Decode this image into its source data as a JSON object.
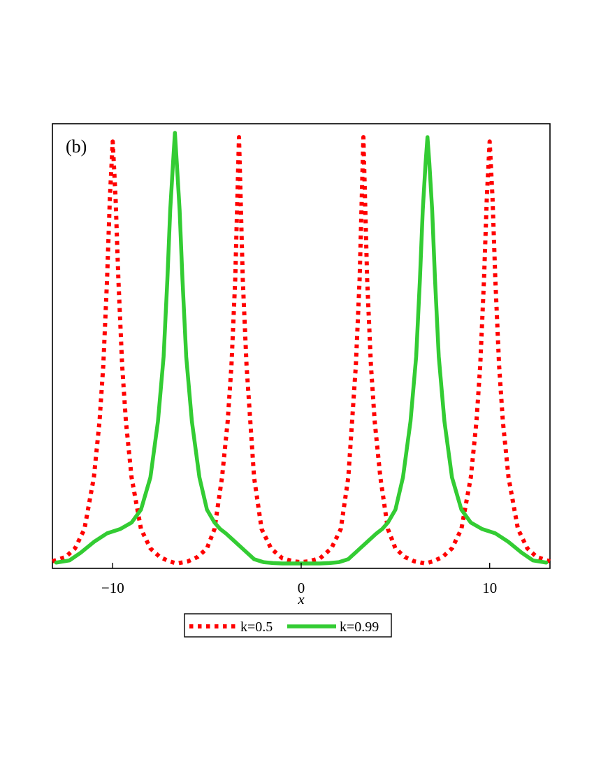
{
  "chart_data": {
    "type": "line",
    "panel_label": "(b)",
    "title": "",
    "xlabel": "x",
    "ylabel": "",
    "xlim": [
      -13.2,
      13.2
    ],
    "ylim": [
      0,
      1
    ],
    "x_ticks": [
      -10,
      0,
      10
    ],
    "x_tick_labels": [
      "−10",
      "0",
      "10"
    ],
    "y_ticks_shown": false,
    "grid": false,
    "legend_position": "bottom-center",
    "series": [
      {
        "name": "k=0.5",
        "style": "dotted",
        "color": "#ff0000",
        "peaks_x": [
          -10,
          -3.3,
          3.3,
          10
        ],
        "x": [
          -13.2,
          -12.5,
          -12,
          -11.5,
          -11,
          -10.7,
          -10.5,
          -10.3,
          -10.15,
          -10,
          -9.85,
          -9.7,
          -9.5,
          -9.3,
          -9,
          -8.5,
          -8,
          -7.5,
          -7,
          -6.6,
          -6,
          -5.5,
          -5,
          -4.6,
          -4.2,
          -3.9,
          -3.7,
          -3.5,
          -3.3,
          -3.1,
          -2.9,
          -2.7,
          -2.5,
          -2.1,
          -1.6,
          -1,
          -0.4,
          0,
          0.4,
          1,
          1.6,
          2.1,
          2.5,
          2.7,
          2.9,
          3.1,
          3.3,
          3.5,
          3.7,
          3.9,
          4.2,
          4.6,
          5,
          5.5,
          6,
          6.6,
          7,
          7.5,
          8,
          8.5,
          9,
          9.3,
          9.5,
          9.7,
          9.85,
          10,
          10.15,
          10.3,
          10.5,
          10.7,
          11,
          11.5,
          12,
          12.5,
          13.2
        ],
        "y": [
          0.005,
          0.015,
          0.035,
          0.08,
          0.2,
          0.33,
          0.46,
          0.66,
          0.85,
          0.98,
          0.85,
          0.66,
          0.46,
          0.33,
          0.2,
          0.08,
          0.035,
          0.015,
          0.005,
          0.0,
          0.005,
          0.015,
          0.035,
          0.08,
          0.2,
          0.33,
          0.46,
          0.66,
          0.99,
          0.66,
          0.46,
          0.33,
          0.2,
          0.08,
          0.035,
          0.012,
          0.005,
          0.003,
          0.005,
          0.012,
          0.035,
          0.08,
          0.2,
          0.33,
          0.46,
          0.66,
          0.99,
          0.66,
          0.46,
          0.33,
          0.2,
          0.08,
          0.035,
          0.015,
          0.005,
          0.0,
          0.005,
          0.015,
          0.035,
          0.08,
          0.2,
          0.33,
          0.46,
          0.66,
          0.85,
          0.98,
          0.85,
          0.66,
          0.46,
          0.33,
          0.2,
          0.08,
          0.035,
          0.015,
          0.005
        ]
      },
      {
        "name": "k=0.99",
        "style": "solid",
        "color": "#33cc33",
        "peaks_x": [
          -6.7,
          6.7
        ],
        "x": [
          -13,
          -12.3,
          -11.7,
          -11,
          -10.3,
          -9.6,
          -9,
          -8.5,
          -8,
          -7.6,
          -7.3,
          -7.1,
          -6.95,
          -6.8,
          -6.7,
          -6.6,
          -6.45,
          -6.3,
          -6.1,
          -5.8,
          -5.4,
          -5,
          -4.6,
          -4.3,
          -4,
          -3.5,
          -3,
          -2.5,
          -2,
          -1.5,
          -1,
          0,
          1,
          1.5,
          2,
          2.5,
          3,
          3.5,
          4,
          4.3,
          4.6,
          5,
          5.4,
          5.8,
          6.1,
          6.3,
          6.45,
          6.6,
          6.7,
          6.8,
          6.95,
          7.1,
          7.3,
          7.6,
          8,
          8.5,
          9,
          9.6,
          10.3,
          11,
          11.7,
          12.3,
          13
        ],
        "y": [
          0.002,
          0.007,
          0.025,
          0.05,
          0.07,
          0.08,
          0.095,
          0.125,
          0.2,
          0.33,
          0.48,
          0.66,
          0.82,
          0.93,
          1.0,
          0.93,
          0.82,
          0.66,
          0.48,
          0.33,
          0.2,
          0.125,
          0.095,
          0.08,
          0.07,
          0.05,
          0.03,
          0.01,
          0.003,
          0.001,
          0.0,
          0.0,
          0.0,
          0.001,
          0.003,
          0.01,
          0.03,
          0.05,
          0.07,
          0.08,
          0.095,
          0.125,
          0.2,
          0.33,
          0.48,
          0.66,
          0.82,
          0.93,
          0.99,
          0.93,
          0.82,
          0.66,
          0.48,
          0.33,
          0.2,
          0.125,
          0.095,
          0.08,
          0.07,
          0.05,
          0.025,
          0.007,
          0.002
        ]
      }
    ],
    "legend": {
      "entries": [
        {
          "label": "k=0.5",
          "series": 0
        },
        {
          "label": "k=0.99",
          "series": 1
        }
      ]
    }
  }
}
